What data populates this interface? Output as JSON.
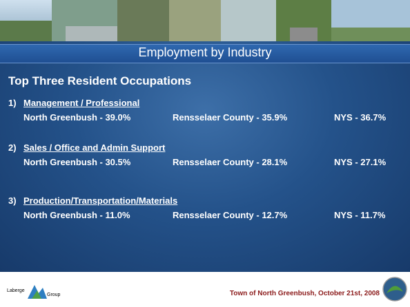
{
  "title": "Employment by Industry",
  "heading": "Top Three Resident Occupations",
  "occupations": [
    {
      "number": "1)",
      "name": "Management / Professional",
      "stats": [
        "North Greenbush - 39.0%",
        "Rensselaer County - 35.9%",
        "NYS - 36.7%"
      ]
    },
    {
      "number": "2)",
      "name": "Sales / Office and Admin Support",
      "stats": [
        "North Greenbush - 30.5%",
        "Rensselaer County - 28.1%",
        "NYS - 27.1%"
      ]
    },
    {
      "number": "3)",
      "name": "Production/Transportation/Materials",
      "stats": [
        "North Greenbush - 11.0%",
        "Rensselaer County - 12.7%",
        "NYS - 11.7%"
      ]
    }
  ],
  "footer": {
    "logo_left": "Laberge",
    "logo_right": "Group",
    "caption": "Town of North Greenbush, October 21st, 2008"
  }
}
